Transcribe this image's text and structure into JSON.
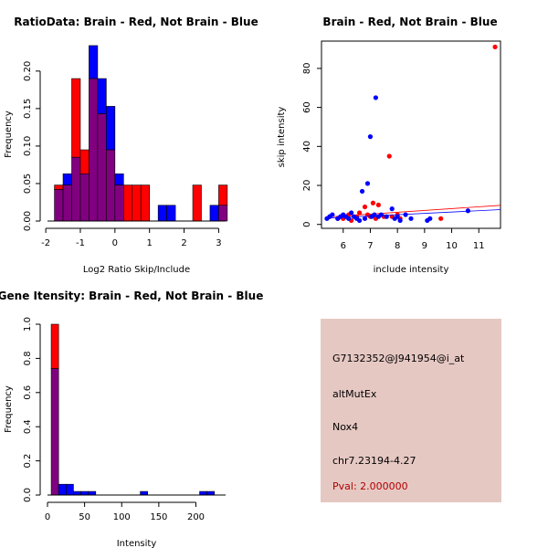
{
  "colors": {
    "red": "#ff0000",
    "blue": "#0000ff",
    "purple": "#800080",
    "panel_bg": "#e6c8c3",
    "pval": "#b00000"
  },
  "chart_data": [
    {
      "type": "histogram",
      "title": "RatioData: Brain - Red, Not Brain - Blue",
      "xlabel": "Log2 Ratio Skip/Include",
      "ylabel": "Frequency",
      "xlim": [
        -1.95,
        3.2
      ],
      "ylim": [
        0,
        0.24
      ],
      "xticks": [
        -2,
        -1,
        0,
        1,
        2,
        3
      ],
      "yticks": [
        0.0,
        0.05,
        0.1,
        0.15,
        0.2
      ],
      "ytick_labels": [
        "0.00",
        "0.05",
        "0.10",
        "0.15",
        "0.20"
      ],
      "bin_width": 0.25,
      "series": [
        {
          "name": "Brain",
          "color": "red",
          "bins": [
            {
              "x0": -1.75,
              "v": 0.048
            },
            {
              "x0": -1.5,
              "v": 0.048
            },
            {
              "x0": -1.25,
              "v": 0.19
            },
            {
              "x0": -1.0,
              "v": 0.095
            },
            {
              "x0": -0.75,
              "v": 0.19
            },
            {
              "x0": -0.5,
              "v": 0.143
            },
            {
              "x0": -0.25,
              "v": 0.095
            },
            {
              "x0": 0.0,
              "v": 0.048
            },
            {
              "x0": 0.25,
              "v": 0.048
            },
            {
              "x0": 0.5,
              "v": 0.048
            },
            {
              "x0": 0.75,
              "v": 0.048
            },
            {
              "x0": 2.25,
              "v": 0.048
            },
            {
              "x0": 3.0,
              "v": 0.048
            }
          ]
        },
        {
          "name": "Not Brain",
          "color": "blue",
          "bins": [
            {
              "x0": -1.75,
              "v": 0.042
            },
            {
              "x0": -1.5,
              "v": 0.063
            },
            {
              "x0": -1.25,
              "v": 0.085
            },
            {
              "x0": -1.0,
              "v": 0.063
            },
            {
              "x0": -0.75,
              "v": 0.234
            },
            {
              "x0": -0.5,
              "v": 0.19
            },
            {
              "x0": -0.25,
              "v": 0.153
            },
            {
              "x0": 0.0,
              "v": 0.063
            },
            {
              "x0": 1.25,
              "v": 0.021
            },
            {
              "x0": 1.5,
              "v": 0.021
            },
            {
              "x0": 2.75,
              "v": 0.021
            },
            {
              "x0": 3.0,
              "v": 0.021
            }
          ]
        }
      ]
    },
    {
      "type": "scatter",
      "title": "Brain - Red, Not Brain - Blue",
      "xlabel": "include intensity",
      "ylabel": "skip intensity",
      "xlim": [
        5.2,
        11.8
      ],
      "ylim": [
        -2,
        94
      ],
      "xticks": [
        6,
        7,
        8,
        9,
        10,
        11
      ],
      "yticks": [
        0,
        20,
        40,
        60,
        80
      ],
      "series": [
        {
          "name": "Brain",
          "color": "red",
          "points": [
            [
              5.5,
              4
            ],
            [
              5.8,
              3
            ],
            [
              6.0,
              3
            ],
            [
              6.2,
              5
            ],
            [
              6.3,
              2
            ],
            [
              6.5,
              4
            ],
            [
              6.6,
              6
            ],
            [
              6.8,
              9
            ],
            [
              6.9,
              5
            ],
            [
              7.0,
              4
            ],
            [
              7.1,
              11
            ],
            [
              7.2,
              3
            ],
            [
              7.3,
              10
            ],
            [
              7.5,
              4
            ],
            [
              7.7,
              35
            ],
            [
              7.8,
              4
            ],
            [
              8.0,
              5
            ],
            [
              8.1,
              3
            ],
            [
              9.6,
              3
            ],
            [
              11.6,
              91
            ]
          ],
          "trend": [
            [
              5.4,
              3.8
            ],
            [
              11.8,
              9.8
            ]
          ]
        },
        {
          "name": "Not Brain",
          "color": "blue",
          "points": [
            [
              5.4,
              3
            ],
            [
              5.5,
              4
            ],
            [
              5.6,
              5
            ],
            [
              5.8,
              3
            ],
            [
              5.9,
              4
            ],
            [
              6.0,
              5
            ],
            [
              6.1,
              4
            ],
            [
              6.2,
              3
            ],
            [
              6.3,
              6
            ],
            [
              6.4,
              4
            ],
            [
              6.5,
              3
            ],
            [
              6.6,
              2
            ],
            [
              6.7,
              17
            ],
            [
              6.8,
              3
            ],
            [
              6.9,
              21
            ],
            [
              7.0,
              45
            ],
            [
              7.05,
              4
            ],
            [
              7.15,
              5
            ],
            [
              7.2,
              65
            ],
            [
              7.3,
              4
            ],
            [
              7.4,
              5
            ],
            [
              7.6,
              4
            ],
            [
              7.8,
              8
            ],
            [
              7.9,
              3
            ],
            [
              8.0,
              4
            ],
            [
              8.1,
              2
            ],
            [
              8.3,
              5
            ],
            [
              8.5,
              3
            ],
            [
              9.1,
              2
            ],
            [
              9.2,
              3
            ],
            [
              10.6,
              7
            ]
          ],
          "trend": [
            [
              5.4,
              3.2
            ],
            [
              11.8,
              7.6
            ]
          ]
        }
      ]
    },
    {
      "type": "histogram",
      "title": "Gene Itensity: Brain - Red, Not Brain - Blue",
      "xlabel": "Intensity",
      "ylabel": "Frequency",
      "xlim": [
        0,
        240
      ],
      "ylim": [
        0,
        1.0
      ],
      "xticks": [
        0,
        50,
        100,
        150,
        200
      ],
      "yticks": [
        0.0,
        0.2,
        0.4,
        0.6,
        0.8,
        1.0
      ],
      "ytick_labels": [
        "0.0",
        "0.2",
        "0.4",
        "0.6",
        "0.8",
        "1.0"
      ],
      "bin_width": 10,
      "series": [
        {
          "name": "Brain",
          "color": "red",
          "bins": [
            {
              "x0": 5,
              "v": 1.0
            }
          ]
        },
        {
          "name": "Not Brain",
          "color": "blue",
          "bins": [
            {
              "x0": 5,
              "v": 0.74
            },
            {
              "x0": 15,
              "v": 0.063
            },
            {
              "x0": 25,
              "v": 0.063
            },
            {
              "x0": 35,
              "v": 0.021
            },
            {
              "x0": 45,
              "v": 0.021
            },
            {
              "x0": 55,
              "v": 0.021
            },
            {
              "x0": 125,
              "v": 0.021
            },
            {
              "x0": 205,
              "v": 0.021
            },
            {
              "x0": 215,
              "v": 0.021
            }
          ]
        }
      ]
    }
  ],
  "info_panel": {
    "probe_id": "G7132352@J941954@i_at",
    "event_type": "altMutEx",
    "gene": "Nox4",
    "location": "chr7.23194-4.27",
    "pval": "Pval: 2.000000"
  }
}
